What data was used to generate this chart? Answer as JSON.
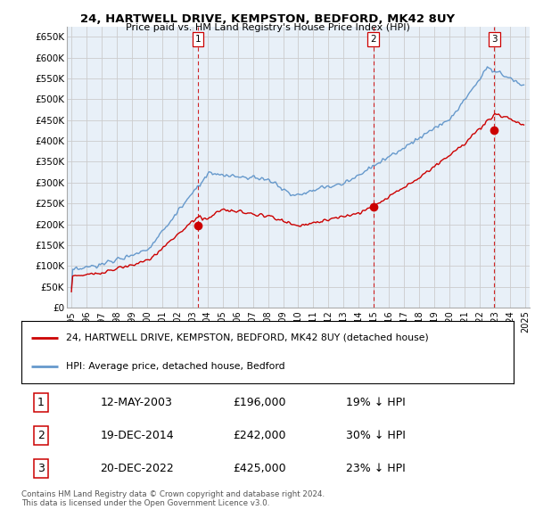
{
  "title": "24, HARTWELL DRIVE, KEMPSTON, BEDFORD, MK42 8UY",
  "subtitle": "Price paid vs. HM Land Registry's House Price Index (HPI)",
  "ytick_labels": [
    "£0",
    "£50K",
    "£100K",
    "£150K",
    "£200K",
    "£250K",
    "£300K",
    "£350K",
    "£400K",
    "£450K",
    "£500K",
    "£550K",
    "£600K",
    "£650K"
  ],
  "ytick_values": [
    0,
    50000,
    100000,
    150000,
    200000,
    250000,
    300000,
    350000,
    400000,
    450000,
    500000,
    550000,
    600000,
    650000
  ],
  "price_paid_color": "#cc0000",
  "hpi_color": "#6699cc",
  "hpi_fill_color": "#ddeeff",
  "grid_color": "#cccccc",
  "bg_color": "#e8f0f8",
  "transactions": [
    {
      "date_x": 2003.36,
      "price": 196000,
      "label": "1"
    },
    {
      "date_x": 2014.96,
      "price": 242000,
      "label": "2"
    },
    {
      "date_x": 2022.96,
      "price": 425000,
      "label": "3"
    }
  ],
  "legend_entries": [
    "24, HARTWELL DRIVE, KEMPSTON, BEDFORD, MK42 8UY (detached house)",
    "HPI: Average price, detached house, Bedford"
  ],
  "table_rows": [
    [
      "1",
      "12-MAY-2003",
      "£196,000",
      "19% ↓ HPI"
    ],
    [
      "2",
      "19-DEC-2014",
      "£242,000",
      "30% ↓ HPI"
    ],
    [
      "3",
      "20-DEC-2022",
      "£425,000",
      "23% ↓ HPI"
    ]
  ],
  "footer": "Contains HM Land Registry data © Crown copyright and database right 2024.\nThis data is licensed under the Open Government Licence v3.0.",
  "xmin": 1994.7,
  "xmax": 2025.3,
  "ymin": 0,
  "ymax": 675000
}
